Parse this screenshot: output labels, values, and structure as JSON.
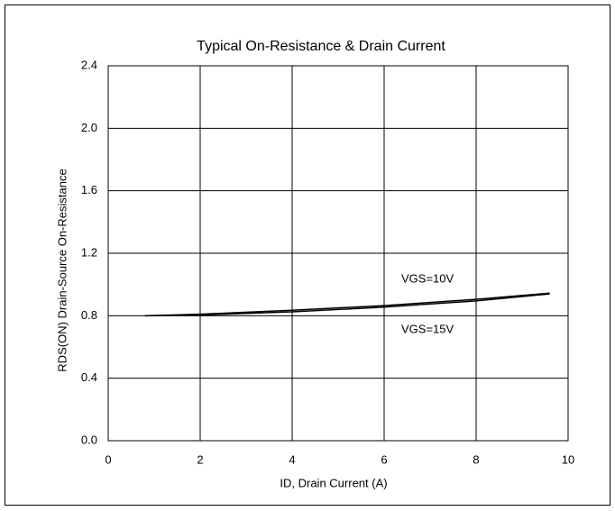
{
  "chart_data": {
    "type": "line",
    "title": "Typical On-Resistance & Drain Current",
    "x_label": "ID, Drain Current (A)",
    "y_label": "RDS(ON)  Drain-Source On-Resistance",
    "series": [
      {
        "name": "VGS=10V",
        "color": "#000000",
        "x": [
          0.8,
          2,
          4,
          6,
          8,
          9.6
        ],
        "values": [
          0.8,
          0.81,
          0.835,
          0.865,
          0.905,
          0.945
        ]
      },
      {
        "name": "VGS=15V",
        "color": "#000000",
        "x": [
          0.8,
          2,
          4,
          6,
          8,
          9.6
        ],
        "values": [
          0.8,
          0.805,
          0.825,
          0.855,
          0.895,
          0.94
        ]
      }
    ],
    "xlim": [
      0,
      10
    ],
    "xticks": [
      0,
      2,
      4,
      6,
      8,
      10
    ],
    "ylim": [
      0,
      2.4
    ],
    "yticks": [
      {
        "value": 0,
        "label": "0.0"
      },
      0.4,
      0.8,
      1.2,
      1.6,
      {
        "value": 2,
        "label": "2.0"
      },
      2.4
    ],
    "grid": true
  }
}
